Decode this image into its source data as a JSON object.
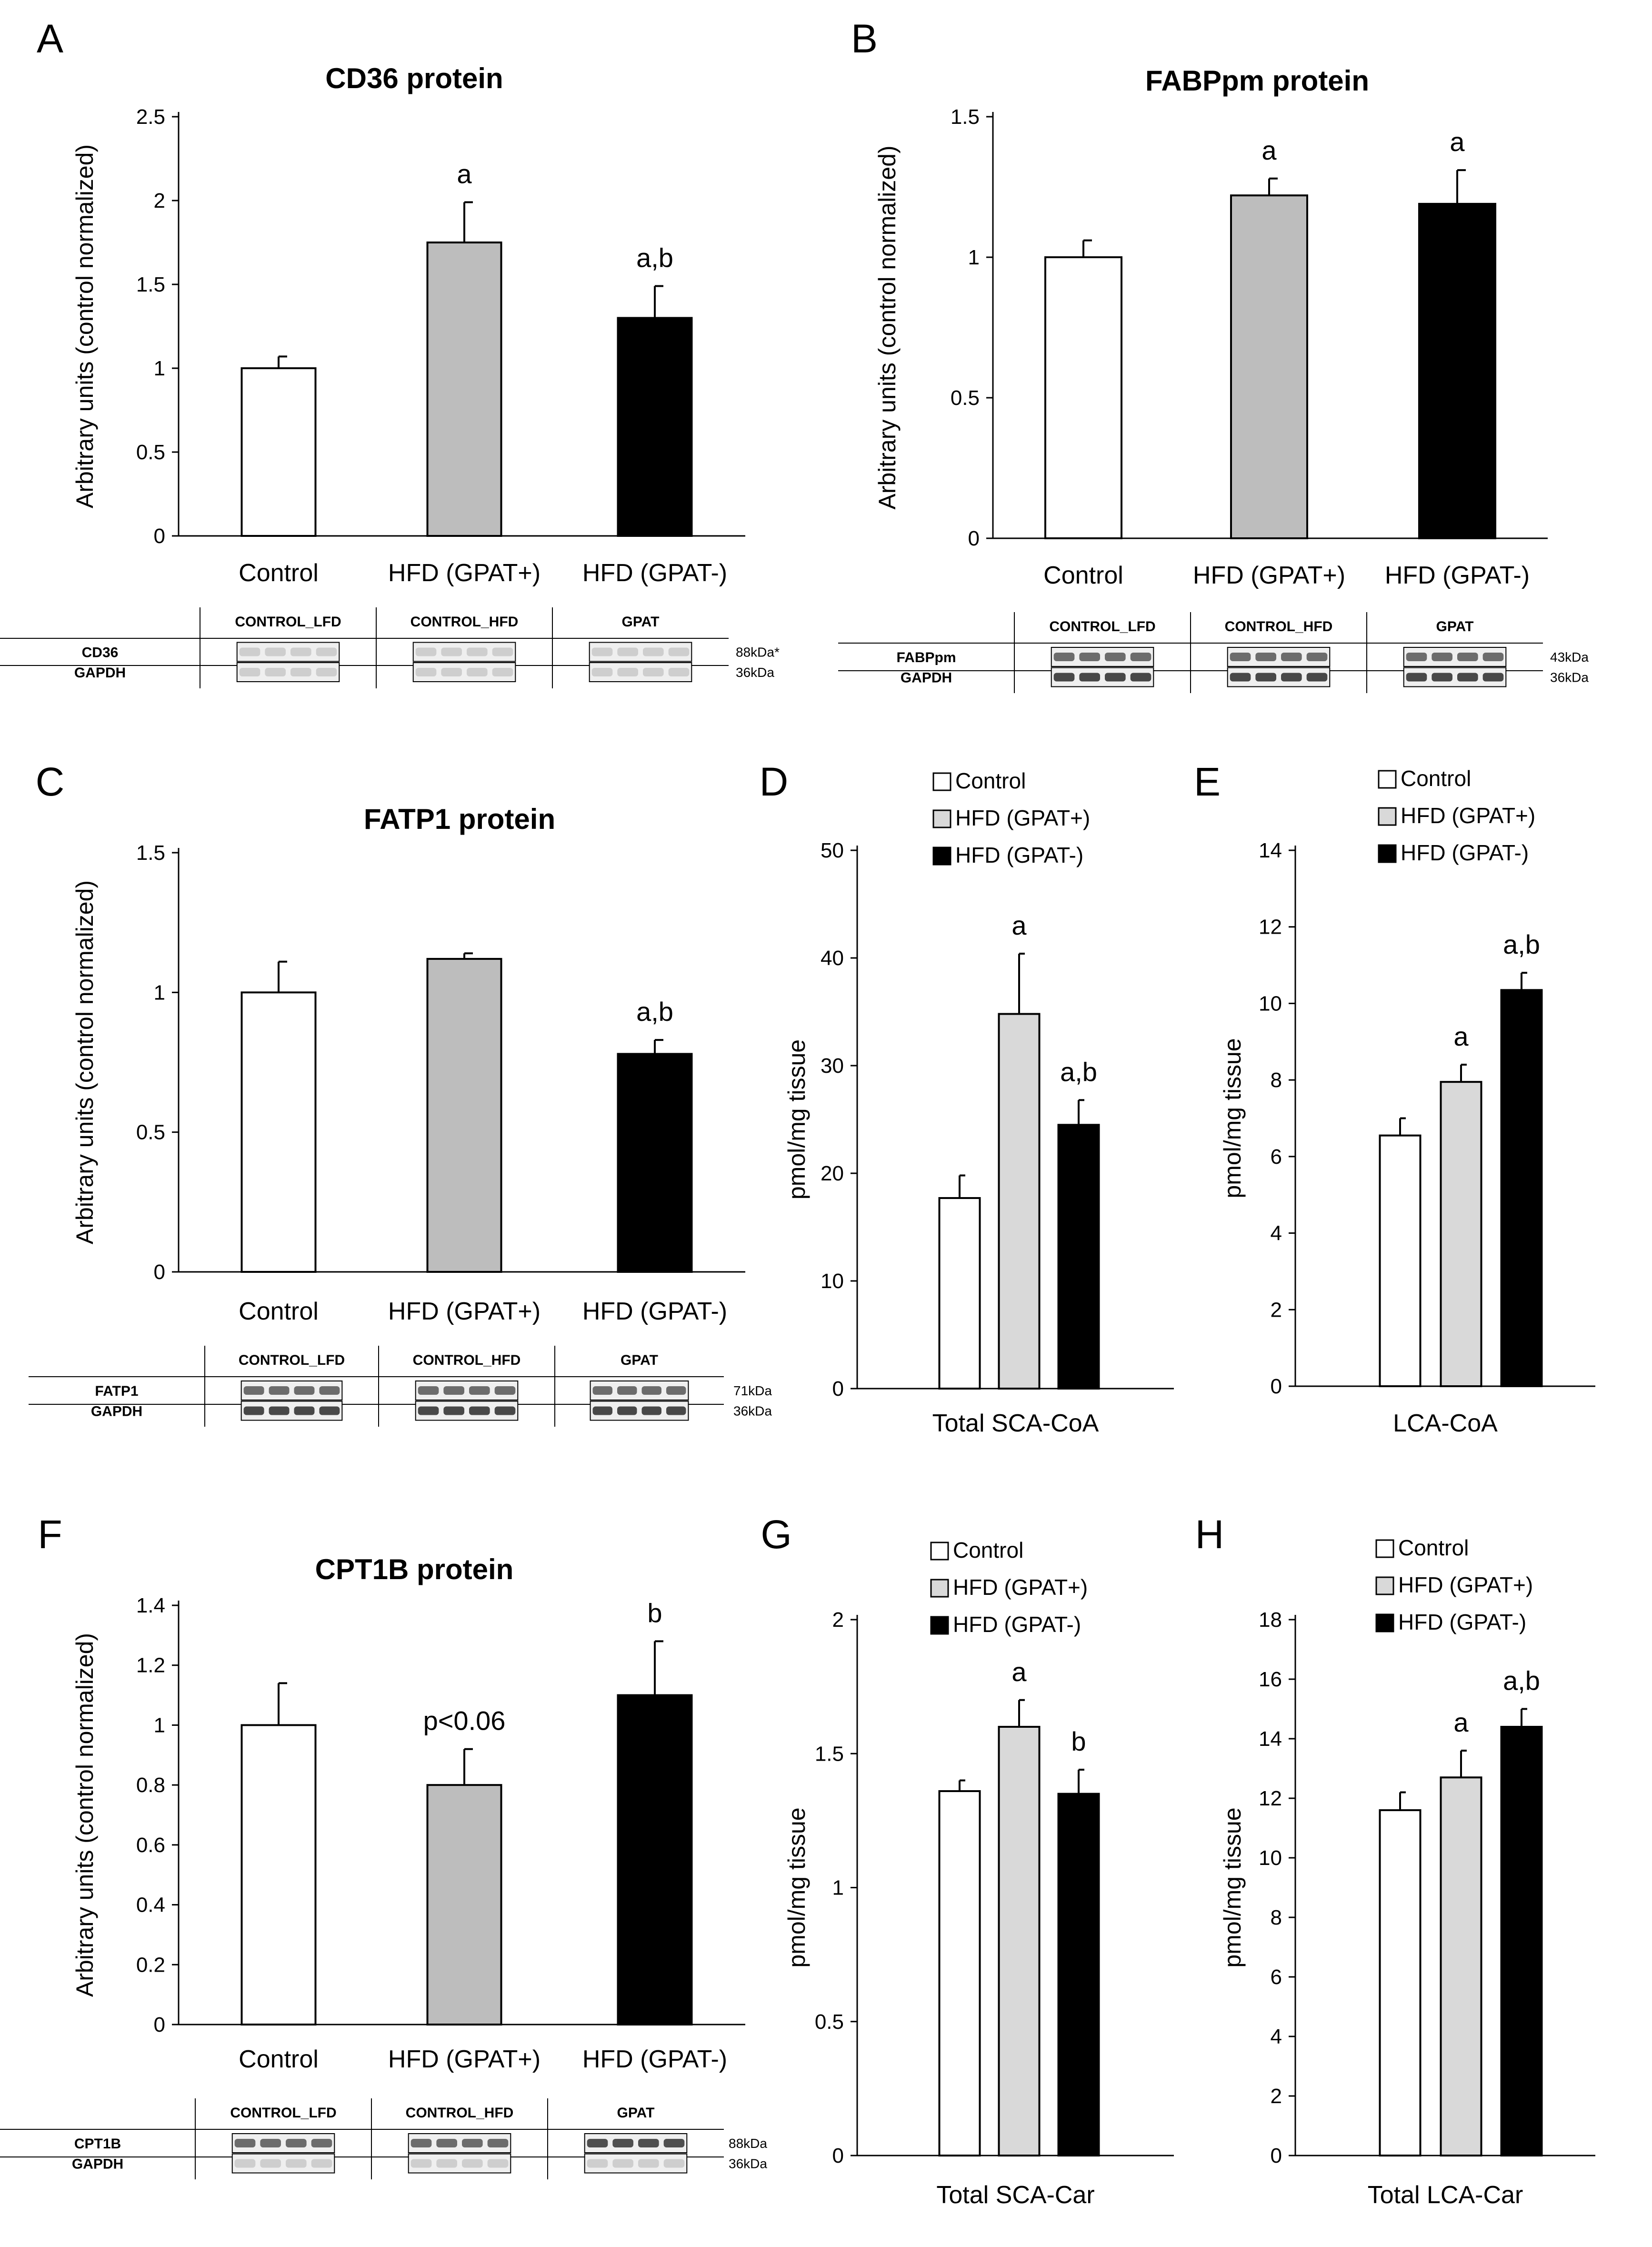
{
  "colors": {
    "control": "#ffffff",
    "gpat_plus_gray": "#bdbdbd",
    "gpat_plus_light": "#d9d9d9",
    "gpat_minus": "#000000"
  },
  "chart_data": [
    {
      "id": "A",
      "panel_letter": "A",
      "type": "bar",
      "title": "CD36 protein",
      "ylabel": "Arbitrary units (control normalized)",
      "xlabel": "",
      "categories": [
        "Control",
        "HFD (GPAT+)",
        "HFD (GPAT-)"
      ],
      "values": [
        1.0,
        1.75,
        1.3
      ],
      "errors": [
        0.07,
        0.24,
        0.19
      ],
      "sig": [
        "",
        "a",
        "a,b"
      ],
      "ylim": [
        0,
        2.5
      ],
      "yticks": [
        "0",
        "0.5",
        "1",
        "1.5",
        "2",
        "2.5"
      ],
      "legend": [],
      "blot": {
        "groups": [
          "CONTROL_LFD",
          "CONTROL_HFD",
          "GPAT"
        ],
        "rows": [
          {
            "label": "CD36",
            "kda": "88kDa*"
          },
          {
            "label": "GAPDH",
            "kda": "36kDa"
          }
        ]
      }
    },
    {
      "id": "B",
      "panel_letter": "B",
      "type": "bar",
      "title": "FABPpm protein",
      "ylabel": "Arbitrary units (control normalized)",
      "xlabel": "",
      "categories": [
        "Control",
        "HFD (GPAT+)",
        "HFD (GPAT-)"
      ],
      "values": [
        1.0,
        1.22,
        1.19
      ],
      "errors": [
        0.06,
        0.06,
        0.12
      ],
      "sig": [
        "",
        "a",
        "a"
      ],
      "ylim": [
        0,
        1.5
      ],
      "yticks": [
        "0",
        "0.5",
        "1",
        "1.5"
      ],
      "legend": [],
      "blot": {
        "groups": [
          "CONTROL_LFD",
          "CONTROL_HFD",
          "GPAT"
        ],
        "rows": [
          {
            "label": "FABPpm",
            "kda": "43kDa"
          },
          {
            "label": "GAPDH",
            "kda": "36kDa"
          }
        ]
      }
    },
    {
      "id": "C",
      "panel_letter": "C",
      "type": "bar",
      "title": "FATP1 protein",
      "ylabel": "Arbitrary units (control normalized)",
      "xlabel": "",
      "categories": [
        "Control",
        "HFD (GPAT+)",
        "HFD (GPAT-)"
      ],
      "values": [
        1.0,
        1.12,
        0.78
      ],
      "errors": [
        0.11,
        0.02,
        0.05
      ],
      "sig": [
        "",
        "",
        "a,b"
      ],
      "ylim": [
        0,
        1.5
      ],
      "yticks": [
        "0",
        "0.5",
        "1",
        "1.5"
      ],
      "legend": [],
      "blot": {
        "groups": [
          "CONTROL_LFD",
          "CONTROL_HFD",
          "GPAT"
        ],
        "rows": [
          {
            "label": "FATP1",
            "kda": "71kDa"
          },
          {
            "label": "GAPDH",
            "kda": "36kDa"
          }
        ]
      }
    },
    {
      "id": "D",
      "panel_letter": "D",
      "type": "bar",
      "title": "",
      "ylabel": "pmol/mg tissue",
      "xlabel": "Total SCA-CoA",
      "categories": [
        "Control",
        "HFD (GPAT+)",
        "HFD (GPAT-)"
      ],
      "values": [
        17.7,
        34.8,
        24.5
      ],
      "errors": [
        2.1,
        5.6,
        2.3
      ],
      "sig": [
        "",
        "a",
        "a,b"
      ],
      "ylim": [
        0,
        50
      ],
      "yticks": [
        "0",
        "10",
        "20",
        "30",
        "40",
        "50"
      ],
      "legend": [
        "Control",
        "HFD (GPAT+)",
        "HFD (GPAT-)"
      ],
      "blot": null
    },
    {
      "id": "E",
      "panel_letter": "E",
      "type": "bar",
      "title": "",
      "ylabel": "pmol/mg tissue",
      "xlabel": "LCA-CoA",
      "categories": [
        "Control",
        "HFD (GPAT+)",
        "HFD (GPAT-)"
      ],
      "values": [
        6.55,
        7.95,
        10.35
      ],
      "errors": [
        0.45,
        0.45,
        0.45
      ],
      "sig": [
        "",
        "a",
        "a,b"
      ],
      "ylim": [
        0,
        14
      ],
      "yticks": [
        "0",
        "2",
        "4",
        "6",
        "8",
        "10",
        "12",
        "14"
      ],
      "legend": [
        "Control",
        "HFD (GPAT+)",
        "HFD (GPAT-)"
      ],
      "blot": null
    },
    {
      "id": "F",
      "panel_letter": "F",
      "type": "bar",
      "title": "CPT1B protein",
      "ylabel": "Arbitrary units (control normalized)",
      "xlabel": "",
      "categories": [
        "Control",
        "HFD (GPAT+)",
        "HFD (GPAT-)"
      ],
      "values": [
        1.0,
        0.8,
        1.1
      ],
      "errors": [
        0.14,
        0.12,
        0.18
      ],
      "sig": [
        "",
        "p<0.06",
        "b"
      ],
      "ylim": [
        0,
        1.4
      ],
      "yticks": [
        "0",
        "0.2",
        "0.4",
        "0.6",
        "0.8",
        "1",
        "1.2",
        "1.4"
      ],
      "legend": [],
      "blot": {
        "groups": [
          "CONTROL_LFD",
          "CONTROL_HFD",
          "GPAT"
        ],
        "rows": [
          {
            "label": "CPT1B",
            "kda": "88kDa"
          },
          {
            "label": "GAPDH",
            "kda": "36kDa"
          }
        ]
      }
    },
    {
      "id": "G",
      "panel_letter": "G",
      "type": "bar",
      "title": "",
      "ylabel": "pmol/mg tissue",
      "xlabel": "Total SCA-Car",
      "categories": [
        "Control",
        "HFD (GPAT+)",
        "HFD (GPAT-)"
      ],
      "values": [
        1.36,
        1.6,
        1.35
      ],
      "errors": [
        0.04,
        0.1,
        0.09
      ],
      "sig": [
        "",
        "a",
        "b"
      ],
      "ylim": [
        0,
        2
      ],
      "yticks": [
        "0",
        "0.5",
        "1",
        "1.5",
        "2"
      ],
      "legend": [
        "Control",
        "HFD (GPAT+)",
        "HFD (GPAT-)"
      ],
      "blot": null
    },
    {
      "id": "H",
      "panel_letter": "H",
      "type": "bar",
      "title": "",
      "ylabel": "pmol/mg tissue",
      "xlabel": "Total LCA-Car",
      "categories": [
        "Control",
        "HFD (GPAT+)",
        "HFD (GPAT-)"
      ],
      "values": [
        11.6,
        12.7,
        14.4
      ],
      "errors": [
        0.6,
        0.9,
        0.6
      ],
      "sig": [
        "",
        "a",
        "a,b"
      ],
      "ylim": [
        0,
        18
      ],
      "yticks": [
        "0",
        "2",
        "4",
        "6",
        "8",
        "10",
        "12",
        "14",
        "16",
        "18"
      ],
      "legend": [
        "Control",
        "HFD (GPAT+)",
        "HFD (GPAT-)"
      ],
      "blot": null
    }
  ]
}
